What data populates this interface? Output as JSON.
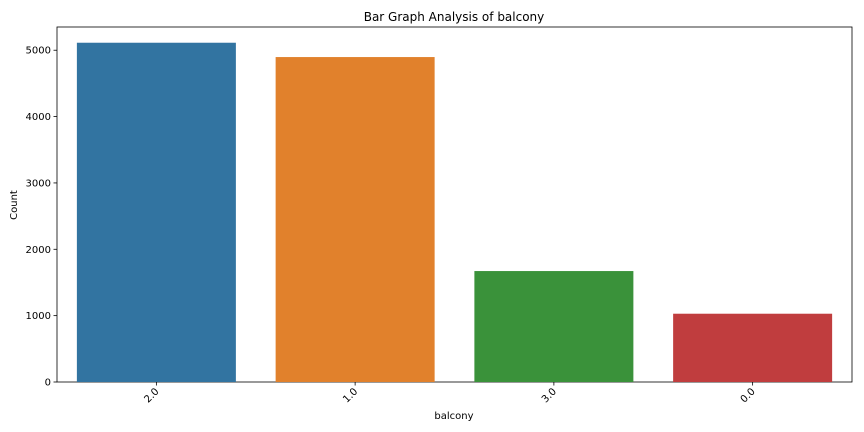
{
  "chart_data": {
    "type": "bar",
    "title": "Bar Graph Analysis of balcony",
    "xlabel": "balcony",
    "ylabel": "Count",
    "categories": [
      "2.0",
      "1.0",
      "3.0",
      "0.0"
    ],
    "values": [
      5113,
      4897,
      1672,
      1029
    ],
    "colors": [
      "#3274a1",
      "#e1812c",
      "#3a923a",
      "#c03d3e"
    ],
    "ylim": [
      0,
      5350
    ],
    "yticks": [
      0,
      1000,
      2000,
      3000,
      4000,
      5000
    ],
    "ytick_labels": [
      "0",
      "1000",
      "2000",
      "3000",
      "4000",
      "5000"
    ],
    "xtick_rotation": 45,
    "grid": false,
    "legend": false
  }
}
